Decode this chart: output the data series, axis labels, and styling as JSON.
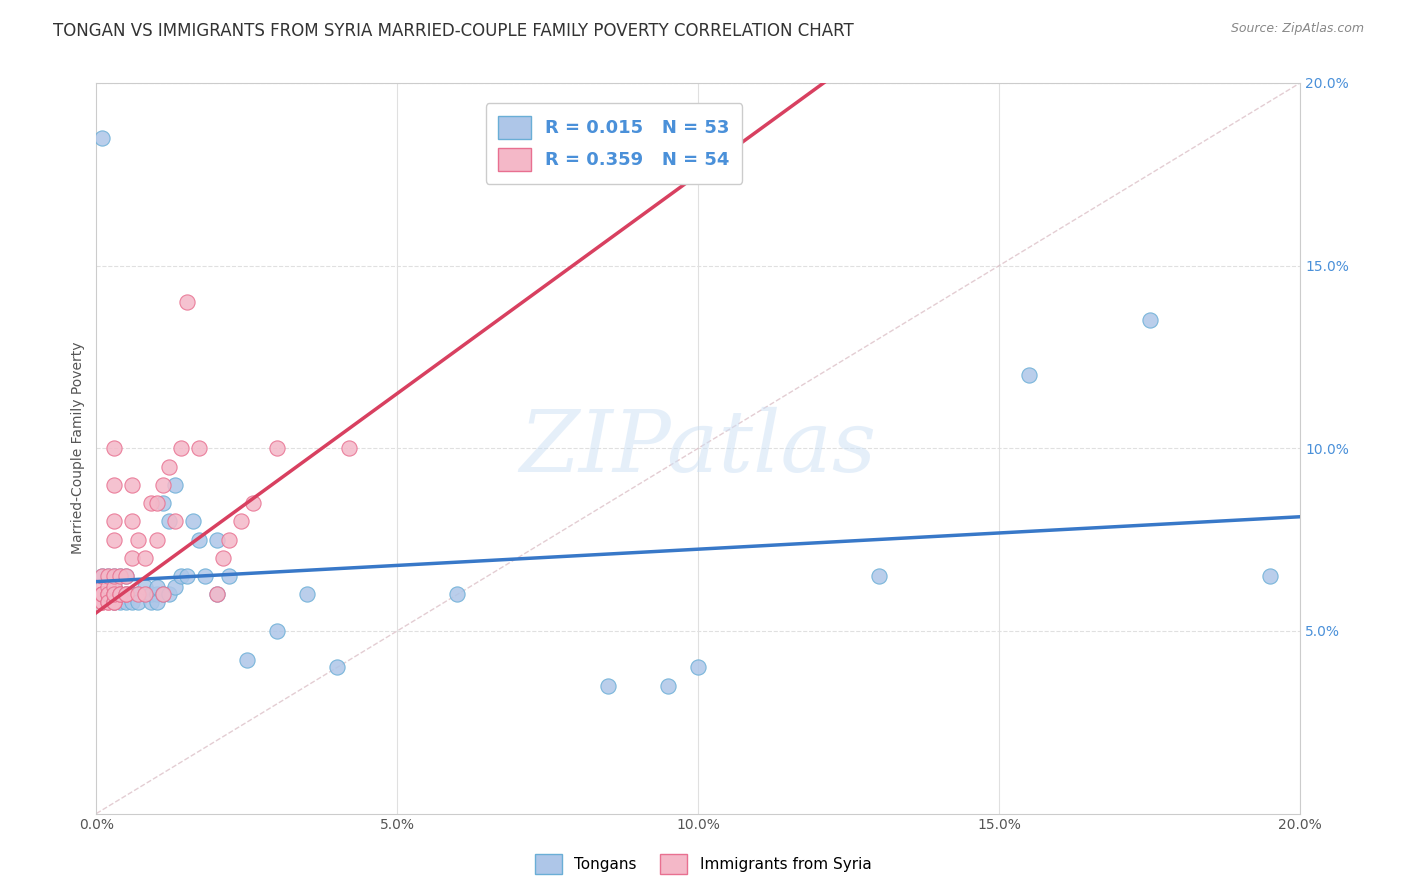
{
  "title": "TONGAN VS IMMIGRANTS FROM SYRIA MARRIED-COUPLE FAMILY POVERTY CORRELATION CHART",
  "source": "Source: ZipAtlas.com",
  "ylabel": "Married-Couple Family Poverty",
  "xlim": [
    0.0,
    0.2
  ],
  "ylim": [
    0.0,
    0.2
  ],
  "xticks": [
    0.0,
    0.05,
    0.1,
    0.15,
    0.2
  ],
  "xticklabels": [
    "0.0%",
    "5.0%",
    "10.0%",
    "15.0%",
    "20.0%"
  ],
  "right_yticks": [
    0.05,
    0.1,
    0.15,
    0.2
  ],
  "right_yticklabels": [
    "5.0%",
    "10.0%",
    "15.0%",
    "20.0%"
  ],
  "legend_R1": "R = 0.015",
  "legend_N1": "N = 53",
  "legend_R2": "R = 0.359",
  "legend_N2": "N = 54",
  "color_tongan": "#aec6e8",
  "color_syria": "#f4b8c8",
  "color_edge_tongan": "#6aaed6",
  "color_edge_syria": "#e87090",
  "color_line_tongan": "#3878c8",
  "color_line_syria": "#d84060",
  "color_diagonal": "#d8b8c0",
  "watermark_color": "#cce0f5",
  "background_color": "#ffffff",
  "grid_color": "#e0e0e0",
  "title_color": "#333333",
  "source_color": "#888888",
  "tick_color_right": "#4a90d9",
  "tick_color_x": "#555555",
  "tongan_x": [
    0.001,
    0.001,
    0.001,
    0.002,
    0.002,
    0.002,
    0.003,
    0.003,
    0.003,
    0.003,
    0.004,
    0.004,
    0.004,
    0.005,
    0.005,
    0.005,
    0.006,
    0.006,
    0.007,
    0.007,
    0.008,
    0.008,
    0.009,
    0.009,
    0.01,
    0.01,
    0.01,
    0.011,
    0.011,
    0.012,
    0.012,
    0.013,
    0.013,
    0.014,
    0.015,
    0.016,
    0.017,
    0.018,
    0.02,
    0.02,
    0.022,
    0.025,
    0.03,
    0.035,
    0.04,
    0.06,
    0.085,
    0.095,
    0.1,
    0.13,
    0.155,
    0.175,
    0.195
  ],
  "tongan_y": [
    0.185,
    0.065,
    0.06,
    0.065,
    0.06,
    0.06,
    0.065,
    0.06,
    0.062,
    0.058,
    0.06,
    0.065,
    0.058,
    0.06,
    0.065,
    0.058,
    0.06,
    0.058,
    0.06,
    0.058,
    0.06,
    0.062,
    0.058,
    0.06,
    0.06,
    0.062,
    0.058,
    0.085,
    0.06,
    0.06,
    0.08,
    0.062,
    0.09,
    0.065,
    0.065,
    0.08,
    0.075,
    0.065,
    0.075,
    0.06,
    0.065,
    0.042,
    0.05,
    0.06,
    0.04,
    0.06,
    0.035,
    0.035,
    0.04,
    0.065,
    0.12,
    0.135,
    0.065
  ],
  "syria_x": [
    0.001,
    0.001,
    0.001,
    0.001,
    0.001,
    0.001,
    0.001,
    0.001,
    0.002,
    0.002,
    0.002,
    0.002,
    0.002,
    0.002,
    0.003,
    0.003,
    0.003,
    0.003,
    0.003,
    0.003,
    0.003,
    0.003,
    0.003,
    0.003,
    0.004,
    0.004,
    0.004,
    0.005,
    0.005,
    0.005,
    0.006,
    0.006,
    0.006,
    0.007,
    0.007,
    0.008,
    0.008,
    0.009,
    0.01,
    0.01,
    0.011,
    0.011,
    0.012,
    0.013,
    0.014,
    0.015,
    0.017,
    0.02,
    0.021,
    0.022,
    0.024,
    0.026,
    0.03,
    0.042
  ],
  "syria_y": [
    0.06,
    0.062,
    0.058,
    0.06,
    0.065,
    0.058,
    0.06,
    0.06,
    0.06,
    0.062,
    0.065,
    0.058,
    0.06,
    0.058,
    0.06,
    0.062,
    0.058,
    0.065,
    0.075,
    0.08,
    0.09,
    0.1,
    0.058,
    0.06,
    0.06,
    0.065,
    0.06,
    0.06,
    0.065,
    0.06,
    0.08,
    0.09,
    0.07,
    0.075,
    0.06,
    0.07,
    0.06,
    0.085,
    0.075,
    0.085,
    0.09,
    0.06,
    0.095,
    0.08,
    0.1,
    0.14,
    0.1,
    0.06,
    0.07,
    0.075,
    0.08,
    0.085,
    0.1,
    0.1
  ],
  "title_fontsize": 12,
  "label_fontsize": 10,
  "tick_fontsize": 10,
  "source_fontsize": 9
}
